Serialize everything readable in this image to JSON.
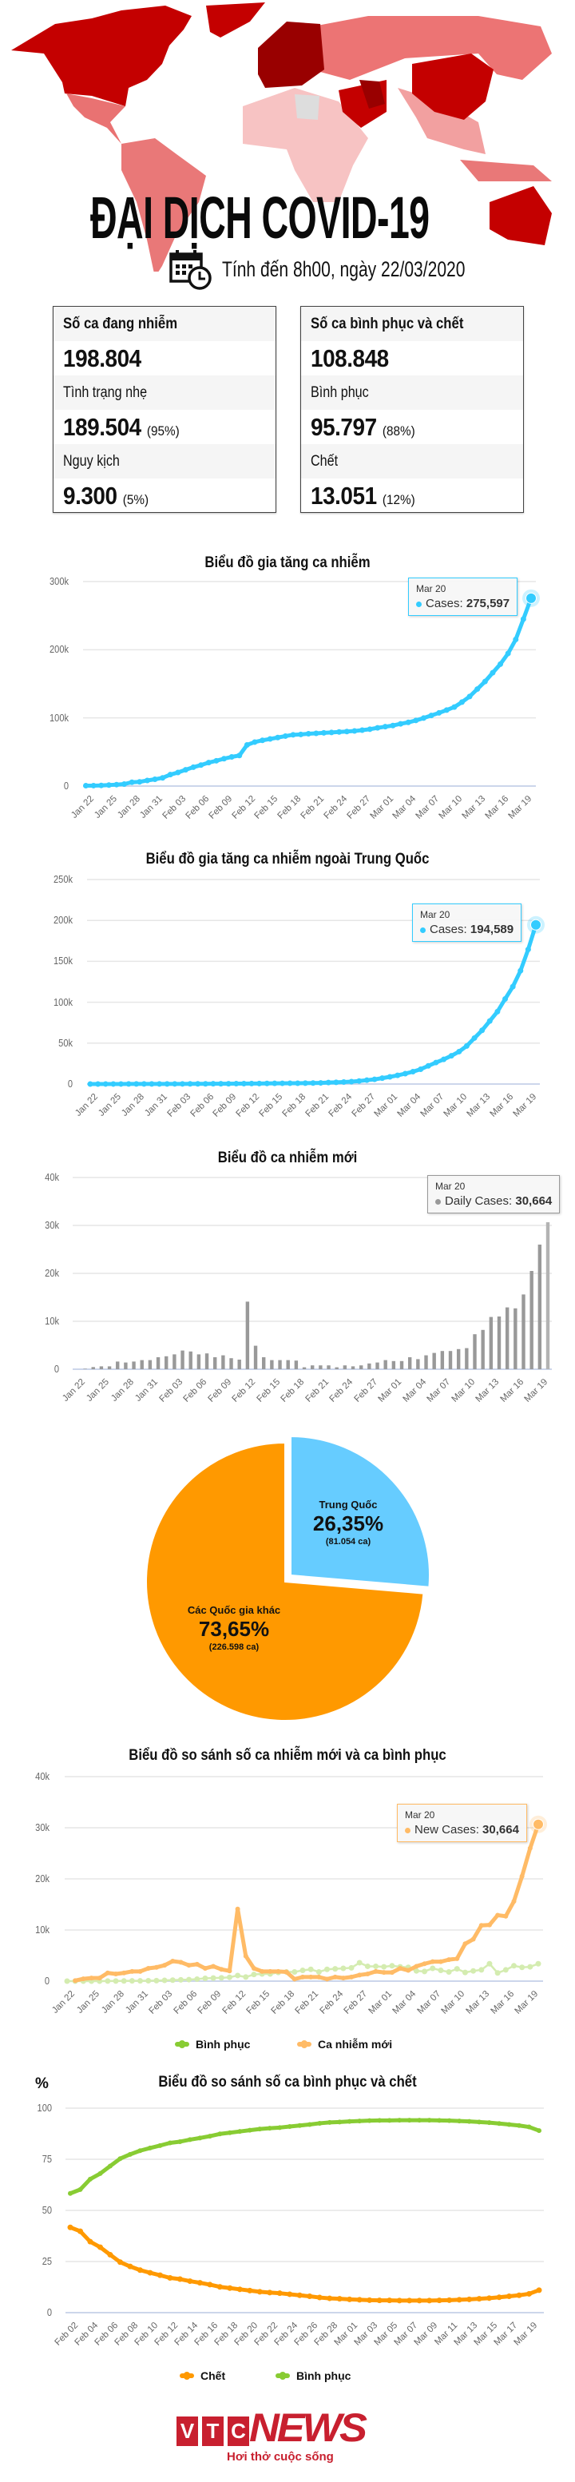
{
  "header": {
    "title": "ĐẠI DỊCH COVID-19",
    "date_text": "Tính đến 8h00, ngày 22/03/2020",
    "icon": "calendar-clock-icon"
  },
  "map_colors": {
    "darkest": "#990000",
    "dark": "#c40000",
    "medium": "#e97272",
    "light": "#f7c3c3",
    "nodata": "#dddddd"
  },
  "stats": {
    "active": {
      "header": "Số ca đang nhiễm",
      "total": "198.804",
      "rows": [
        {
          "label": "Tình trạng nhẹ",
          "value": "189.504",
          "pct": "(95%)"
        },
        {
          "label": "Nguy kịch",
          "value": "9.300",
          "pct": "(5%)"
        }
      ]
    },
    "closed": {
      "header": "Số ca bình phục và chết",
      "total": "108.848",
      "rows": [
        {
          "label": "Bình phục",
          "value": "95.797",
          "pct": "(88%)"
        },
        {
          "label": "Chết",
          "value": "13.051",
          "pct": "(12%)"
        }
      ]
    }
  },
  "chart_data": [
    {
      "type": "line",
      "title": "Biểu đồ gia tăng ca nhiễm",
      "x_range": [
        "Jan 22",
        "Mar 20"
      ],
      "x_tick_labels": [
        "Jan 22",
        "Jan 25",
        "Jan 28",
        "Jan 31",
        "Feb 03",
        "Feb 06",
        "Feb 09",
        "Feb 12",
        "Feb 15",
        "Feb 18",
        "Feb 21",
        "Feb 24",
        "Feb 27",
        "Mar 01",
        "Mar 04",
        "Mar 07",
        "Mar 10",
        "Mar 13",
        "Mar 16",
        "Mar 19"
      ],
      "y_ticks": [
        0,
        100000,
        200000,
        300000
      ],
      "y_tick_labels": [
        "0",
        "100k",
        "200k",
        "300k"
      ],
      "ylim": [
        0,
        300000
      ],
      "grid": true,
      "series": [
        {
          "name": "Cases",
          "color": "#33ccff",
          "values": [
            580,
            650,
            940,
            1430,
            2120,
            2930,
            5580,
            6170,
            8240,
            9930,
            12040,
            16790,
            19880,
            23890,
            27640,
            30820,
            34390,
            37120,
            40150,
            42760,
            44800,
            60370,
            64500,
            67100,
            69100,
            71200,
            73300,
            75200,
            75700,
            76700,
            77300,
            78100,
            78600,
            79400,
            80000,
            80800,
            82000,
            83400,
            85400,
            87100,
            88800,
            91300,
            93400,
            96300,
            99700,
            103500,
            107300,
            111500,
            115900,
            123200,
            131400,
            142300,
            153300,
            166200,
            178900,
            194500,
            215000,
            244900,
            275597
          ]
        }
      ],
      "tooltip": {
        "date": "Mar 20",
        "series": "Cases",
        "value": "275,597"
      }
    },
    {
      "type": "line",
      "title": "Biểu đồ gia tăng ca nhiễm ngoài Trung Quốc",
      "x_range": [
        "Jan 22",
        "Mar 20"
      ],
      "x_tick_labels": [
        "Jan 22",
        "Jan 25",
        "Jan 28",
        "Jan 31",
        "Feb 03",
        "Feb 06",
        "Feb 09",
        "Feb 12",
        "Feb 15",
        "Feb 18",
        "Feb 21",
        "Feb 24",
        "Feb 27",
        "Mar 01",
        "Mar 04",
        "Mar 07",
        "Mar 10",
        "Mar 13",
        "Mar 16",
        "Mar 19"
      ],
      "y_ticks": [
        0,
        50000,
        100000,
        150000,
        200000,
        250000
      ],
      "y_tick_labels": [
        "0",
        "50k",
        "100k",
        "150k",
        "200k",
        "250k"
      ],
      "ylim": [
        0,
        250000
      ],
      "grid": true,
      "series": [
        {
          "name": "Cases",
          "color": "#33ccff",
          "values": [
            10,
            20,
            40,
            50,
            60,
            80,
            90,
            110,
            130,
            140,
            150,
            160,
            180,
            200,
            230,
            270,
            320,
            350,
            400,
            450,
            500,
            550,
            600,
            700,
            800,
            900,
            950,
            1000,
            1100,
            1200,
            1400,
            1800,
            2100,
            2500,
            2900,
            3700,
            4700,
            5700,
            7200,
            8800,
            10600,
            12700,
            15100,
            18100,
            22200,
            26300,
            30100,
            34500,
            39600,
            46500,
            56200,
            65700,
            77000,
            88500,
            104000,
            119000,
            138500,
            164500,
            194589
          ]
        }
      ],
      "tooltip": {
        "date": "Mar 20",
        "series": "Cases",
        "value": "194,589"
      }
    },
    {
      "type": "bar",
      "title": "Biểu đồ ca nhiễm mới",
      "x_range": [
        "Jan 22",
        "Mar 20"
      ],
      "x_tick_labels": [
        "Jan 22",
        "Jan 25",
        "Jan 28",
        "Jan 31",
        "Feb 03",
        "Feb 06",
        "Feb 09",
        "Feb 12",
        "Feb 15",
        "Feb 18",
        "Feb 21",
        "Feb 24",
        "Feb 27",
        "Mar 01",
        "Mar 04",
        "Mar 07",
        "Mar 10",
        "Mar 13",
        "Mar 16",
        "Mar 19"
      ],
      "y_ticks": [
        0,
        10000,
        20000,
        30000,
        40000
      ],
      "y_tick_labels": [
        "0",
        "10k",
        "20k",
        "30k",
        "40k"
      ],
      "ylim": [
        0,
        40000
      ],
      "grid": true,
      "series": [
        {
          "name": "Daily Cases",
          "color": "#999999",
          "values": [
            0,
            100,
            450,
            600,
            600,
            1600,
            1400,
            1600,
            1900,
            1900,
            2500,
            2700,
            3100,
            3900,
            3700,
            3100,
            3300,
            2500,
            2900,
            2300,
            2000,
            14100,
            4900,
            2500,
            1900,
            1900,
            1900,
            1800,
            400,
            800,
            800,
            800,
            400,
            800,
            600,
            800,
            1200,
            1400,
            1900,
            1700,
            1700,
            2500,
            2100,
            2900,
            3400,
            3800,
            3800,
            4200,
            4400,
            7300,
            8200,
            10900,
            11000,
            12900,
            12700,
            15600,
            20500,
            26000,
            30664
          ]
        }
      ],
      "tooltip": {
        "date": "Mar 20",
        "series": "Daily Cases",
        "value": "30,664"
      }
    },
    {
      "type": "pie",
      "slices": [
        {
          "label": "Trung Quốc",
          "percent_label": "26,35%",
          "count_label": "(81.054 ca)",
          "value": 81054,
          "color": "#66ccff"
        },
        {
          "label": "Các Quốc gia khác",
          "percent_label": "73,65%",
          "count_label": "(226.598 ca)",
          "value": 226598,
          "color": "#ff9900"
        }
      ]
    },
    {
      "type": "line",
      "title": "Biểu đồ so sánh số ca nhiễm mới và ca bình phục",
      "x_range": [
        "Jan 22",
        "Mar 20"
      ],
      "x_tick_labels": [
        "Jan 22",
        "Jan 25",
        "Jan 28",
        "Jan 31",
        "Feb 03",
        "Feb 06",
        "Feb 09",
        "Feb 12",
        "Feb 15",
        "Feb 18",
        "Feb 21",
        "Feb 24",
        "Feb 27",
        "Mar 01",
        "Mar 04",
        "Mar 07",
        "Mar 10",
        "Mar 13",
        "Mar 16",
        "Mar 19"
      ],
      "y_ticks": [
        0,
        10000,
        20000,
        30000,
        40000
      ],
      "y_tick_labels": [
        "0",
        "10k",
        "20k",
        "30k",
        "40k"
      ],
      "ylim": [
        0,
        40000
      ],
      "grid": true,
      "legend_position": "bottom",
      "series": [
        {
          "name": "Bình phục",
          "color": "#d4ecb0",
          "legend_color": "#88cc33",
          "values": [
            0,
            0,
            0,
            0,
            0,
            10,
            20,
            30,
            50,
            50,
            80,
            100,
            150,
            200,
            250,
            300,
            400,
            550,
            600,
            650,
            750,
            1100,
            800,
            1300,
            1400,
            1400,
            1700,
            1800,
            1800,
            2100,
            2300,
            1800,
            2300,
            2400,
            2500,
            2600,
            3600,
            2900,
            2900,
            2800,
            3000,
            2800,
            2700,
            2000,
            1900,
            2500,
            2100,
            1800,
            2400,
            1700,
            2000,
            2200,
            3400,
            1600,
            2200,
            3000,
            2700,
            2800,
            3400
          ]
        },
        {
          "name": "Ca nhiễm mới",
          "color": "#ffbb66",
          "legend_color": "#ffbb66",
          "values": [
            null,
            100,
            450,
            600,
            600,
            1600,
            1400,
            1600,
            1900,
            1900,
            2500,
            2700,
            3100,
            3900,
            3700,
            3100,
            3300,
            2500,
            2900,
            2300,
            2000,
            14100,
            4900,
            2500,
            1900,
            1900,
            1900,
            1800,
            400,
            800,
            800,
            800,
            400,
            800,
            600,
            800,
            1200,
            1400,
            1900,
            1700,
            1700,
            2500,
            2100,
            2900,
            3400,
            3800,
            3800,
            4200,
            4400,
            7300,
            8200,
            10900,
            11000,
            12900,
            12700,
            15600,
            20500,
            26000,
            30664
          ]
        }
      ],
      "tooltip": {
        "date": "Mar 20",
        "series": "New Cases",
        "value": "30,664"
      }
    },
    {
      "type": "line",
      "title": "Biểu đồ so sánh số ca bình phục và chết",
      "ylabel": "%",
      "x_range": [
        "Feb 02",
        "Mar 20"
      ],
      "x_tick_labels": [
        "Feb 02",
        "Feb 04",
        "Feb 06",
        "Feb 08",
        "Feb 10",
        "Feb 12",
        "Feb 14",
        "Feb 16",
        "Feb 18",
        "Feb 20",
        "Feb 22",
        "Feb 24",
        "Feb 26",
        "Feb 28",
        "Mar 01",
        "Mar 03",
        "Mar 05",
        "Mar 07",
        "Mar 09",
        "Mar 11",
        "Mar 13",
        "Mar 15",
        "Mar 17",
        "Mar 19"
      ],
      "y_ticks": [
        0,
        25,
        50,
        75,
        100
      ],
      "y_tick_labels": [
        "0",
        "25",
        "50",
        "75",
        "100"
      ],
      "ylim": [
        0,
        100
      ],
      "grid": true,
      "legend_position": "bottom",
      "series": [
        {
          "name": "Bình phục",
          "color": "#88cc33",
          "legend_color": "#88cc33",
          "values": [
            58.3,
            60.2,
            65.3,
            68.0,
            71.7,
            75.3,
            77.4,
            79.2,
            80.5,
            81.7,
            83.0,
            83.6,
            84.6,
            85.4,
            86.3,
            87.4,
            88.0,
            88.6,
            89.2,
            89.8,
            90.2,
            90.5,
            91.0,
            91.5,
            92.0,
            92.6,
            93.0,
            93.2,
            93.5,
            93.7,
            93.9,
            94.0,
            94.0,
            94.1,
            94.1,
            94.1,
            94.1,
            94.0,
            93.9,
            93.7,
            93.5,
            93.2,
            92.9,
            92.5,
            92.0,
            91.5,
            90.8,
            89.0
          ]
        },
        {
          "name": "Chết",
          "color": "#ff9900",
          "legend_color": "#ff9900",
          "values": [
            41.7,
            39.8,
            34.7,
            32.0,
            28.3,
            24.7,
            22.6,
            20.8,
            19.5,
            18.3,
            17.0,
            16.4,
            15.4,
            14.6,
            13.7,
            12.6,
            12.0,
            11.4,
            10.8,
            10.2,
            9.8,
            9.5,
            9.0,
            8.5,
            8.0,
            7.4,
            7.0,
            6.8,
            6.5,
            6.3,
            6.1,
            6.0,
            6.0,
            5.9,
            5.9,
            5.9,
            5.9,
            6.0,
            6.1,
            6.3,
            6.5,
            6.8,
            7.1,
            7.5,
            8.0,
            8.5,
            9.2,
            11.0
          ]
        }
      ]
    }
  ],
  "footer": {
    "logo_letters": [
      "V",
      "T",
      "C"
    ],
    "logo_word": "NEWS",
    "slogan": "Hơi thở cuộc sống"
  }
}
